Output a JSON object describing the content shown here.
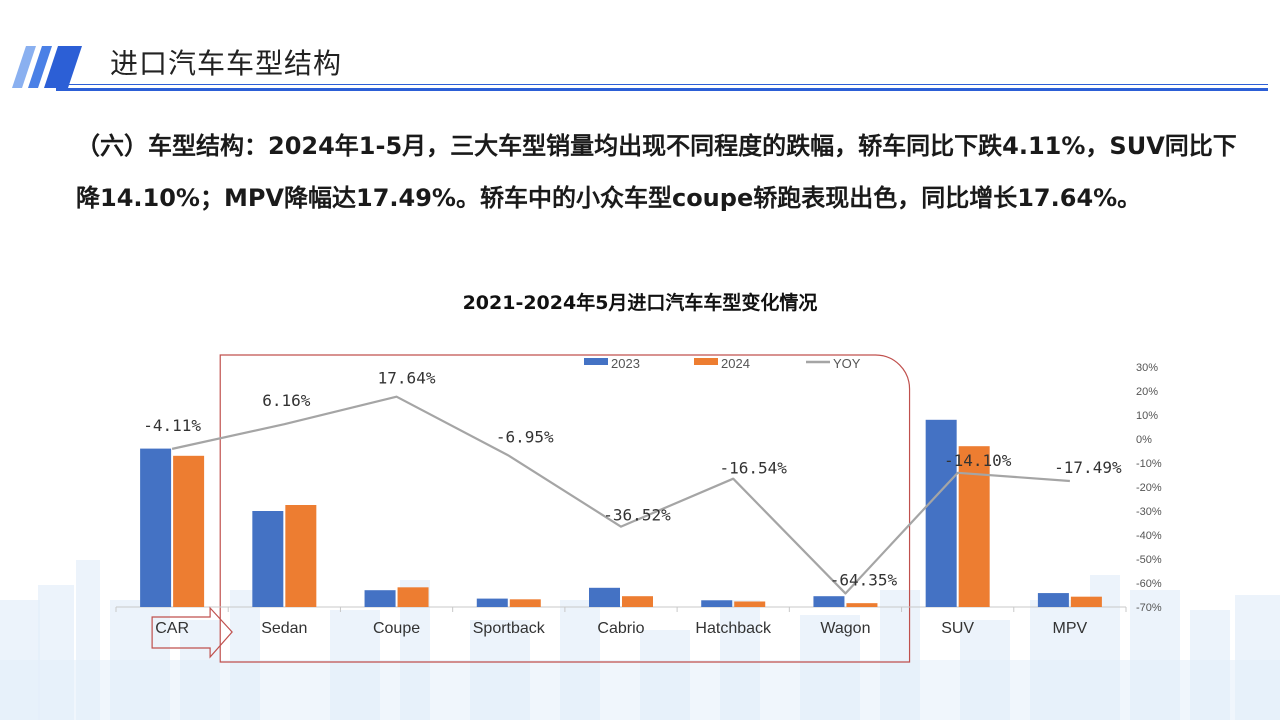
{
  "header": {
    "title": "进口汽车车型结构"
  },
  "summary": {
    "text": "（六）车型结构：2024年1-5月，三大车型销量均出现不同程度的跌幅，轿车同比下跌4.11%，SUV同比下降14.10%；MPV降幅达17.49%。轿车中的小众车型coupe轿跑表现出色，同比增长17.64%。"
  },
  "colors": {
    "accent": "#2c5fd6",
    "series_2023": "#4472c4",
    "series_2024": "#ed7d31",
    "series_yoy": "#a5a5a5",
    "highlight_box": "#c0504d",
    "background_city": "#e4eefa"
  },
  "icons": {
    "header_logo": "slanted-stripes-logo",
    "car_arrow": "right-arrow-outline"
  },
  "chart_data": {
    "type": "bar",
    "title": "2021-2024年5月进口汽车车型变化情况",
    "categories": [
      "CAR",
      "Sedan",
      "Coupe",
      "Sportback",
      "Cabrio",
      "Hatchback",
      "Wagon",
      "SUV",
      "MPV"
    ],
    "series": [
      {
        "name": "2023",
        "type": "bar",
        "values": [
          66,
          40,
          7,
          3.5,
          8,
          2.8,
          4.5,
          78,
          5.8
        ]
      },
      {
        "name": "2024",
        "type": "bar",
        "values": [
          63,
          42.5,
          8.2,
          3.2,
          4.5,
          2.3,
          1.6,
          67,
          4.3
        ]
      },
      {
        "name": "YOY",
        "type": "line",
        "axis": "right",
        "values": [
          -4.11,
          6.16,
          17.64,
          -6.95,
          -36.52,
          -16.54,
          -64.35,
          -14.1,
          -17.49
        ],
        "labels": [
          "-4.11%",
          "6.16%",
          "17.64%",
          "-6.95%",
          "-36.52%",
          "-16.54%",
          "-64.35%",
          "-14.10%",
          "-17.49%"
        ]
      }
    ],
    "y_left": {
      "ylim": [
        0,
        100
      ],
      "visible": false
    },
    "y_right": {
      "ylim": [
        -70,
        30
      ],
      "ticks": [
        30,
        20,
        10,
        0,
        -10,
        -20,
        -30,
        -40,
        -50,
        -60,
        -70
      ],
      "tick_labels": [
        "30%",
        "20%",
        "10%",
        "0%",
        "-10%",
        "-20%",
        "-30%",
        "-40%",
        "-50%",
        "-60%",
        "-70%"
      ]
    },
    "legend": {
      "placement": "top",
      "entries": [
        "2023",
        "2024",
        "YOY"
      ]
    },
    "grid": false,
    "highlight_box": {
      "from_category": "Sedan",
      "to_category": "Wagon"
    },
    "arrow_category": "CAR"
  }
}
